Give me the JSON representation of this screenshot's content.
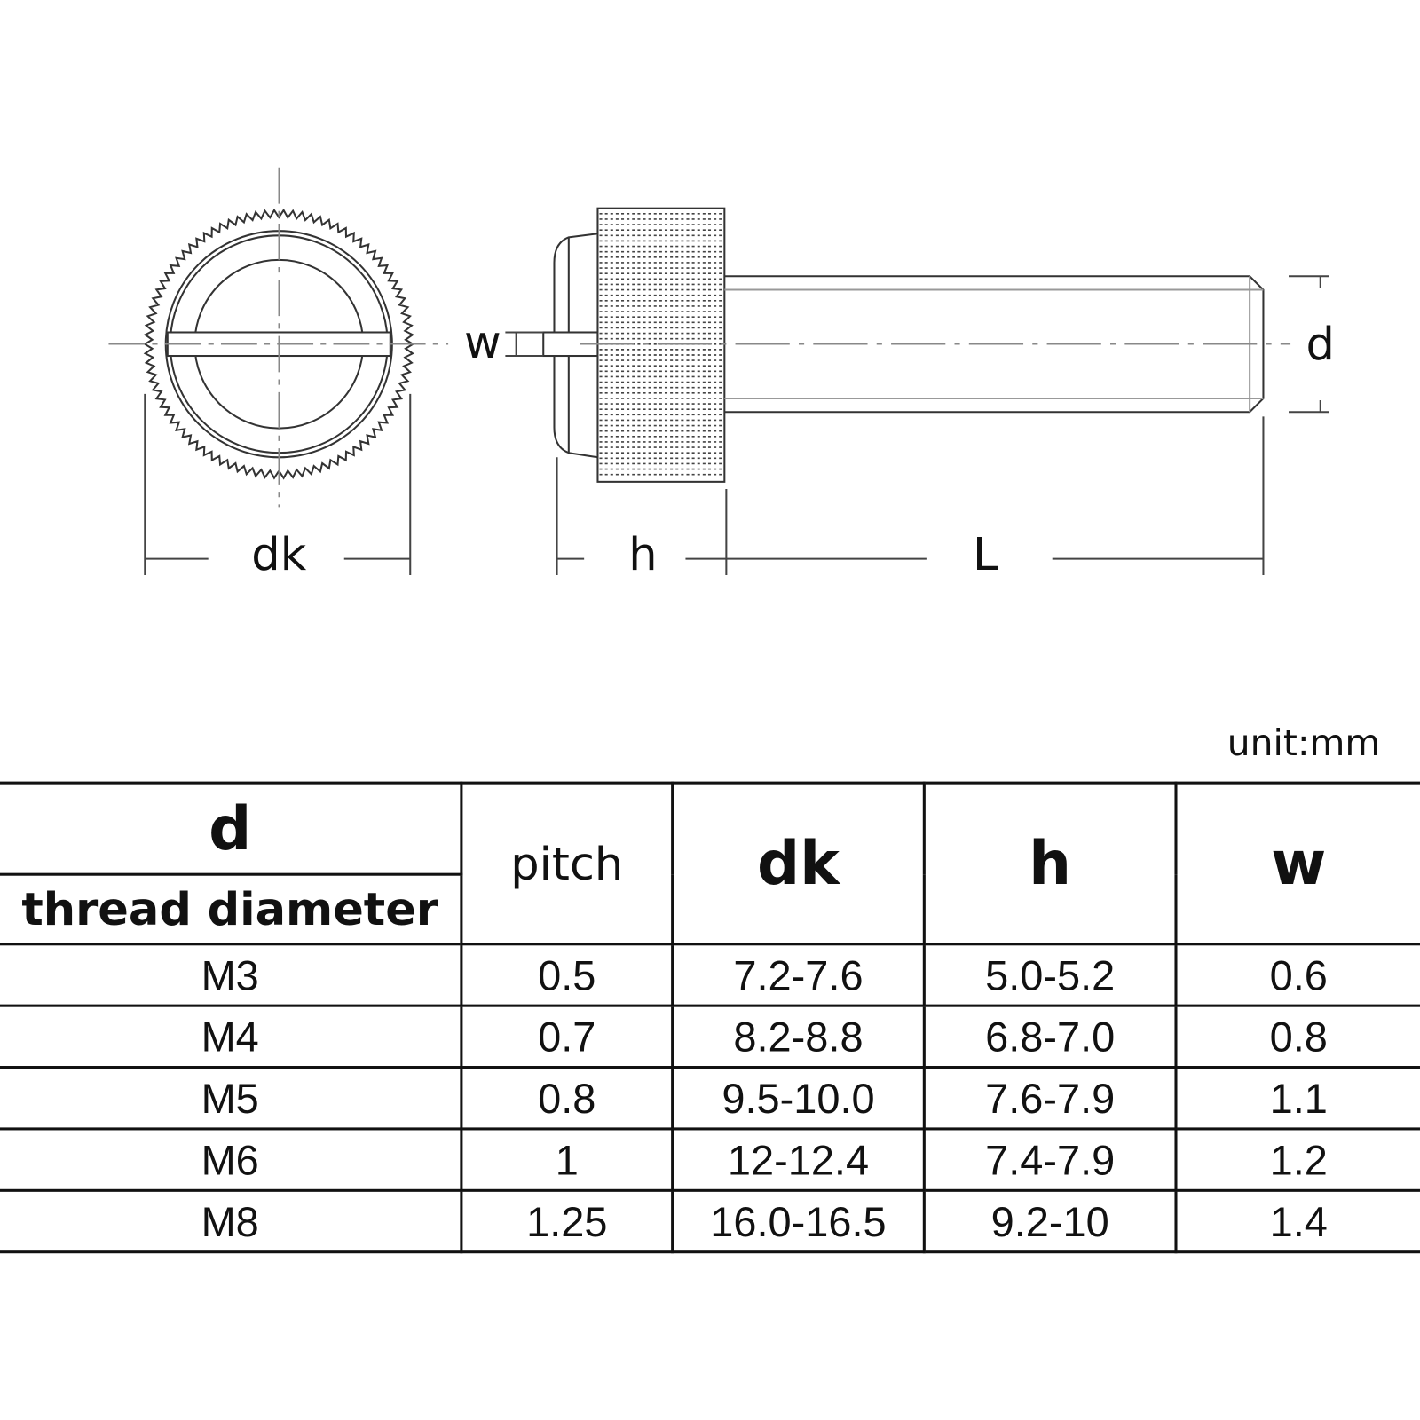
{
  "diagram": {
    "labels": {
      "dk": "dk",
      "h": "h",
      "L": "L",
      "w": "w",
      "d": "d"
    }
  },
  "unit_note": "unit:mm",
  "table": {
    "headers": {
      "d": "d",
      "thread_diameter": "thread diameter",
      "pitch": "pitch",
      "dk": "dk",
      "h": "h",
      "w": "w"
    },
    "rows": [
      [
        "M3",
        "0.5",
        "7.2-7.6",
        "5.0-5.2",
        "0.6"
      ],
      [
        "M4",
        "0.7",
        "8.2-8.8",
        "6.8-7.0",
        "0.8"
      ],
      [
        "M5",
        "0.8",
        "9.5-10.0",
        "7.6-7.9",
        "1.1"
      ],
      [
        "M6",
        "1",
        "12-12.4",
        "7.4-7.9",
        "1.2"
      ],
      [
        "M8",
        "1.25",
        "16.0-16.5",
        "9.2-10",
        "1.4"
      ]
    ]
  }
}
